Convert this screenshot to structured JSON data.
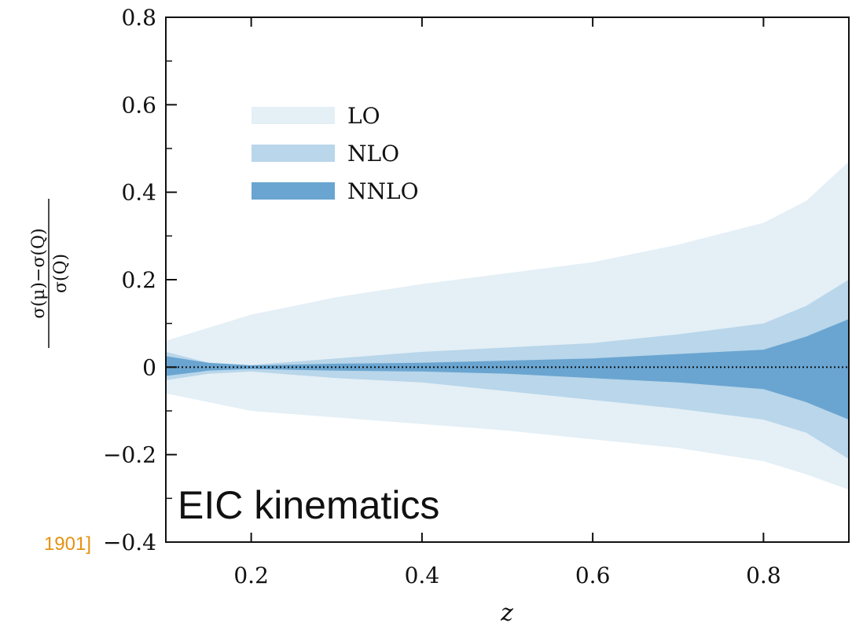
{
  "chart_data": {
    "type": "area",
    "xlabel": "z",
    "ylabel": "σ(μ)−σ(Q) / σ(Q)",
    "xlim": [
      0.1,
      0.9
    ],
    "ylim": [
      -0.4,
      0.8
    ],
    "xticks": [
      0.2,
      0.4,
      0.6,
      0.8
    ],
    "xtick_labels": [
      "0.2",
      "0.4",
      "0.6",
      "0.8"
    ],
    "yticks": [
      -0.4,
      -0.2,
      0,
      0.2,
      0.4,
      0.6,
      0.8
    ],
    "ytick_labels": [
      "−0.4",
      "−0.2",
      "0",
      "0.2",
      "0.4",
      "0.6",
      "0.8"
    ],
    "legend_position": "upper-left",
    "reference_line": 0,
    "annotation": "EIC kinematics",
    "side_text": "1901]",
    "series": [
      {
        "name": "LO",
        "color": "#e4eff6",
        "x": [
          0.1,
          0.15,
          0.2,
          0.3,
          0.4,
          0.5,
          0.6,
          0.7,
          0.8,
          0.85,
          0.9
        ],
        "upper": [
          0.06,
          0.09,
          0.12,
          0.16,
          0.19,
          0.215,
          0.24,
          0.28,
          0.33,
          0.38,
          0.47
        ],
        "lower": [
          -0.06,
          -0.08,
          -0.1,
          -0.115,
          -0.13,
          -0.145,
          -0.165,
          -0.185,
          -0.215,
          -0.245,
          -0.28
        ]
      },
      {
        "name": "NLO",
        "color": "#b9d6ea",
        "x": [
          0.1,
          0.15,
          0.2,
          0.3,
          0.4,
          0.5,
          0.6,
          0.7,
          0.8,
          0.85,
          0.9
        ],
        "upper": [
          0.035,
          0.01,
          0.005,
          0.02,
          0.035,
          0.045,
          0.055,
          0.075,
          0.1,
          0.14,
          0.2
        ],
        "lower": [
          -0.03,
          -0.015,
          -0.01,
          -0.025,
          -0.035,
          -0.055,
          -0.075,
          -0.095,
          -0.12,
          -0.15,
          -0.21
        ]
      },
      {
        "name": "NNLO",
        "color": "#6aa5d1",
        "x": [
          0.1,
          0.15,
          0.2,
          0.3,
          0.4,
          0.5,
          0.6,
          0.7,
          0.8,
          0.85,
          0.9
        ],
        "upper": [
          0.025,
          0.01,
          0.004,
          0.008,
          0.01,
          0.015,
          0.02,
          0.03,
          0.04,
          0.07,
          0.11
        ],
        "lower": [
          -0.02,
          -0.008,
          -0.004,
          -0.008,
          -0.01,
          -0.015,
          -0.025,
          -0.035,
          -0.05,
          -0.08,
          -0.12
        ]
      }
    ]
  }
}
